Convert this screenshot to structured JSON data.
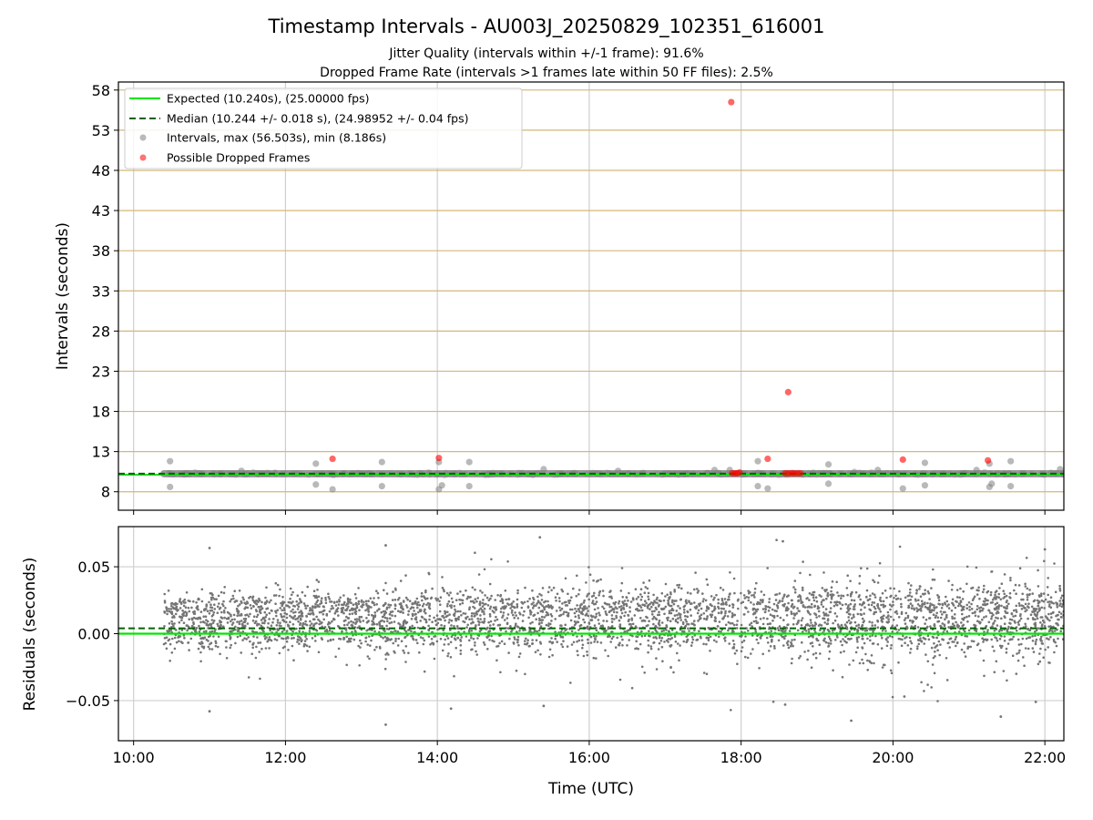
{
  "chart_data": [
    {
      "type": "scatter",
      "title": "Timestamp Intervals - AU003J_20250829_102351_616001",
      "subtitle_lines": [
        "Jitter Quality (intervals within +/-1 frame): 91.6%",
        "Dropped Frame Rate (intervals >1 frames late within 50 FF files): 2.5%"
      ],
      "ylabel": "Intervals (seconds)",
      "xlim": [
        9.8,
        22.25
      ],
      "ylim": [
        5.7,
        59.0
      ],
      "yticks": [
        8,
        13,
        18,
        23,
        28,
        33,
        38,
        43,
        48,
        53,
        58
      ],
      "ytick_labels": [
        "8",
        "13",
        "18",
        "23",
        "28",
        "33",
        "38",
        "43",
        "48",
        "53",
        "58"
      ],
      "expected_interval": 10.24,
      "median_interval": 10.244,
      "data_start_hour": 10.4,
      "data_end_hour": 22.25,
      "legend": [
        {
          "label": "Expected (10.240s), (25.00000 fps)",
          "style": "line",
          "color": "#00e600"
        },
        {
          "label": "Median (10.244 +/- 0.018 s), (24.98952 +/- 0.04 fps)",
          "style": "dashed",
          "color": "#006400"
        },
        {
          "label": "Intervals, max (56.503s), min (8.186s)",
          "style": "marker",
          "color": "#808080"
        },
        {
          "label": "Possible Dropped Frames",
          "style": "marker",
          "color": "#ff0000"
        }
      ],
      "series": [
        {
          "name": "Interval outliers",
          "color": "#808080",
          "points": [
            [
              10.48,
              11.8
            ],
            [
              10.48,
              8.6
            ],
            [
              11.42,
              10.6
            ],
            [
              11.5,
              10.3
            ],
            [
              12.4,
              11.5
            ],
            [
              12.4,
              8.9
            ],
            [
              12.62,
              8.3
            ],
            [
              13.27,
              11.7
            ],
            [
              13.27,
              8.7
            ],
            [
              14.02,
              11.7
            ],
            [
              14.02,
              8.3
            ],
            [
              14.06,
              8.8
            ],
            [
              14.42,
              11.7
            ],
            [
              14.42,
              8.7
            ],
            [
              15.4,
              10.8
            ],
            [
              16.38,
              10.6
            ],
            [
              17.65,
              10.7
            ],
            [
              17.85,
              10.7
            ],
            [
              18.22,
              11.8
            ],
            [
              18.22,
              8.7
            ],
            [
              18.35,
              8.4
            ],
            [
              19.15,
              11.4
            ],
            [
              19.15,
              9.0
            ],
            [
              19.8,
              10.7
            ],
            [
              20.13,
              8.4
            ],
            [
              20.42,
              11.6
            ],
            [
              20.42,
              8.8
            ],
            [
              21.1,
              10.7
            ],
            [
              21.27,
              11.5
            ],
            [
              21.27,
              8.6
            ],
            [
              21.3,
              9.0
            ],
            [
              21.55,
              11.8
            ],
            [
              21.55,
              8.7
            ],
            [
              22.2,
              10.8
            ]
          ]
        },
        {
          "name": "Possible Dropped Frames",
          "color": "#ff0000",
          "points": [
            [
              12.62,
              12.1
            ],
            [
              14.02,
              12.2
            ],
            [
              17.87,
              56.5
            ],
            [
              18.35,
              12.1
            ],
            [
              18.62,
              20.4
            ],
            [
              20.13,
              12.0
            ],
            [
              21.25,
              11.9
            ],
            [
              17.88,
              10.3
            ],
            [
              17.92,
              10.3
            ],
            [
              17.95,
              10.3
            ],
            [
              17.98,
              10.4
            ],
            [
              18.58,
              10.3
            ],
            [
              18.62,
              10.3
            ],
            [
              18.66,
              10.3
            ],
            [
              18.7,
              10.3
            ],
            [
              18.74,
              10.3
            ],
            [
              18.78,
              10.3
            ]
          ]
        }
      ]
    },
    {
      "type": "scatter",
      "xlabel": "Time (UTC)",
      "ylabel": "Residuals (seconds)",
      "xlim": [
        9.8,
        22.25
      ],
      "ylim": [
        -0.08,
        0.08
      ],
      "yticks": [
        -0.05,
        0.0,
        0.05
      ],
      "ytick_labels": [
        "−0.05",
        "0.00",
        "0.05"
      ],
      "xticks": [
        10,
        12,
        14,
        16,
        18,
        20,
        22
      ],
      "xtick_labels": [
        "10:00",
        "12:00",
        "14:00",
        "16:00",
        "18:00",
        "20:00",
        "22:00"
      ],
      "expected_residual": 0.0,
      "median_residual": 0.004,
      "residual_data_start_hour": 10.4,
      "residual_data_end_hour": 22.25,
      "residual_count": 4100,
      "residual_upper_band": [
        0.018,
        0.022
      ],
      "residual_lower_band": [
        -0.02,
        0.002
      ],
      "residual_spread_start": 0.012,
      "residual_spread_end": 0.022,
      "residual_extremes": [
        [
          11.0,
          0.064
        ],
        [
          11.0,
          -0.058
        ],
        [
          13.32,
          0.066
        ],
        [
          13.32,
          -0.068
        ],
        [
          14.18,
          -0.056
        ],
        [
          15.35,
          0.072
        ],
        [
          15.4,
          -0.054
        ],
        [
          18.55,
          0.069
        ],
        [
          18.58,
          -0.053
        ],
        [
          19.45,
          -0.065
        ],
        [
          20.15,
          -0.047
        ],
        [
          21.42,
          -0.062
        ],
        [
          21.88,
          -0.051
        ],
        [
          22.0,
          0.063
        ]
      ],
      "series_colors": {
        "residuals": "#757575",
        "expected": "#00e600",
        "median": "#006400"
      }
    }
  ]
}
